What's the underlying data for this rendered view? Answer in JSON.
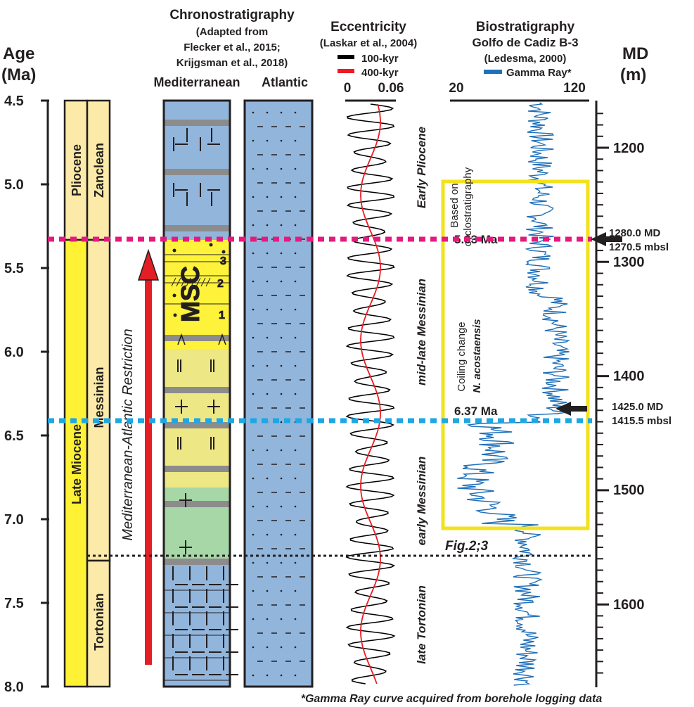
{
  "titles": {
    "age": "Age",
    "age_unit": "(Ma)",
    "chrono": "Chronostratigraphy",
    "chrono_ref1": "(Adapted from",
    "chrono_ref2": "Flecker et al., 2015;",
    "chrono_ref3": "Krijgsman et al., 2018)",
    "med": "Mediterranean",
    "atl": "Atlantic",
    "ecc": "Eccentricity",
    "ecc_ref": "(Laskar et al., 2004)",
    "bio": "Biostratigraphy",
    "bio_ref1": "Golfo de Cadiz B-3",
    "bio_ref2": "(Ledesma, 2000)",
    "md": "MD",
    "md_unit": "(m)"
  },
  "legend": {
    "ecc_100": "100-kyr",
    "ecc_400": "400-kyr",
    "gamma": "Gamma Ray*"
  },
  "chart_data": {
    "type": "stratigraphic-column",
    "age_axis": {
      "ticks": [
        "4.5",
        "5.0",
        "5.5",
        "6.0",
        "6.5",
        "7.0",
        "7.5",
        "8.0"
      ],
      "range": [
        4.5,
        8.0
      ]
    },
    "md_axis": {
      "ticks": [
        "1200",
        "1300",
        "1400",
        "1500",
        "1600"
      ]
    },
    "ecc_axis": {
      "ticks": [
        "0",
        "0.06"
      ]
    },
    "gr_axis": {
      "ticks": [
        "20",
        "120"
      ]
    },
    "epochs": [
      {
        "name": "Pliocene",
        "from": 4.5,
        "to": 5.33
      },
      {
        "name": "Late Miocene",
        "from": 5.33,
        "to": 8.0
      }
    ],
    "stages": [
      {
        "name": "Zanclean",
        "from": 4.5,
        "to": 5.33
      },
      {
        "name": "Messinian",
        "from": 5.33,
        "to": 7.25
      },
      {
        "name": "Tortonian",
        "from": 7.25,
        "to": 8.0
      }
    ],
    "interval_labels": [
      {
        "text": "Early Pliocene",
        "age": 4.9
      },
      {
        "text": "mid-late Messinian",
        "age": 5.87
      },
      {
        "text": "early Messinian",
        "age": 6.85
      },
      {
        "text": "late Tortonian",
        "age": 7.65
      }
    ],
    "msc_label": "MSC",
    "msc_stages": [
      "1",
      "2",
      "3"
    ],
    "restriction_label": "Mediterranean-Atlantic Restriction",
    "boundaries": [
      {
        "age": 5.33,
        "label": "5.33 Ma",
        "md": "1280.0 MD",
        "mbsl": "1270.5 mbsl",
        "color": "#e6197f"
      },
      {
        "age": 6.4,
        "label": "6.37 Ma",
        "md": "1425.0 MD",
        "mbsl": "1415.5 mbsl",
        "color": "#1da7e3"
      },
      {
        "age": 7.25,
        "label": "",
        "color": "#231f20"
      }
    ],
    "box_labels": {
      "top1": "Based on",
      "top2": "cyclostratigraphy",
      "bot1": "Coiling change",
      "bot2": "N. acostaensis"
    },
    "fig_ref": "Fig.2;3",
    "footnote": "*Gamma Ray curve acquired from borehole logging data",
    "colors": {
      "pliocene": "#fbeaa8",
      "miocene": "#fff133",
      "marine_blue": "#92b5db",
      "pale_yellow": "#eee785",
      "bright_yellow": "#fff23a",
      "green": "#a7d7a6",
      "grey_bed": "#8c8c8c",
      "ecc100": "#000000",
      "ecc400": "#ed1c24",
      "gamma": "#1f6fba",
      "box": "#f2e21b",
      "arrow": "#e31e24"
    }
  }
}
